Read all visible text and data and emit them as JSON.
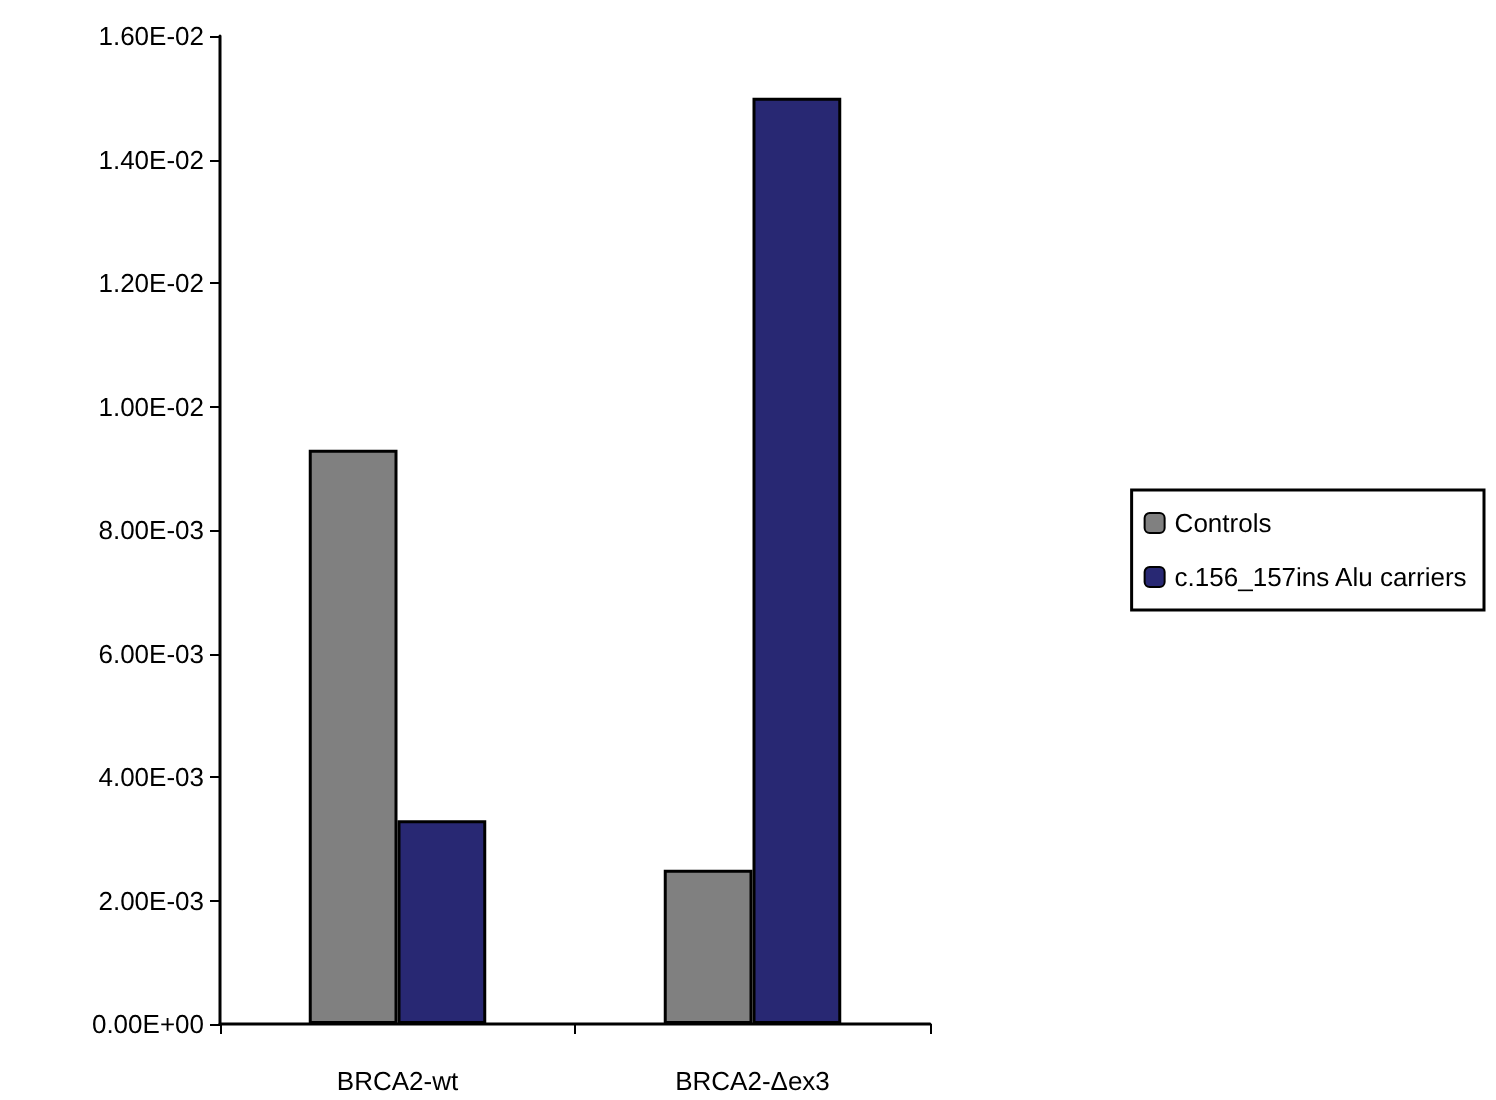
{
  "chart_data": {
    "type": "bar",
    "categories": [
      "BRCA2-wt",
      "BRCA2-Δex3"
    ],
    "series": [
      {
        "name": "Controls",
        "color": "#808080",
        "values": [
          0.0093,
          0.0025
        ]
      },
      {
        "name": "c.156_157ins Alu carriers",
        "color": "#282873",
        "values": [
          0.0033,
          0.015
        ]
      }
    ],
    "ylim": [
      0,
      0.016
    ],
    "yticks": [
      {
        "value": 0,
        "label": "0.00E+00"
      },
      {
        "value": 0.002,
        "label": "2.00E-03"
      },
      {
        "value": 0.004,
        "label": "4.00E-03"
      },
      {
        "value": 0.006,
        "label": "6.00E-03"
      },
      {
        "value": 0.008,
        "label": "8.00E-03"
      },
      {
        "value": 0.01,
        "label": "1.00E-02"
      },
      {
        "value": 0.012,
        "label": "1.20E-02"
      },
      {
        "value": 0.014,
        "label": "1.40E-02"
      },
      {
        "value": 0.016,
        "label": "1.60E-02"
      }
    ],
    "grid": false,
    "legend": "right"
  }
}
